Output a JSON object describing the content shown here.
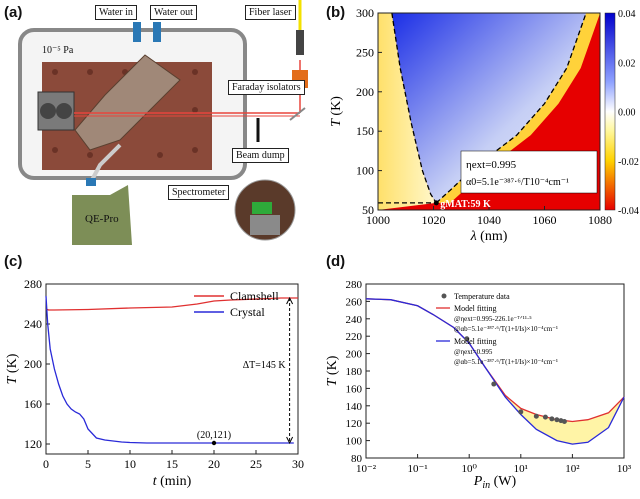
{
  "panel_a": {
    "label": "(a)",
    "water_in": "Water in",
    "water_out": "Water out",
    "fiber_laser": "Fiber laser",
    "pressure": "10⁻⁵ Pa",
    "faraday": "Faraday isolators",
    "beam_dump": "Beam dump",
    "qe_pro": "QE-Pro",
    "spectrometer": "Spectrometer"
  },
  "colors": {
    "laser_red": "#e8453c",
    "chamber_brown": "#8b4a3a",
    "qe_green": "#7d8e57",
    "clamshell": "#e03030",
    "crystal": "#2a2ad8",
    "fill_yellow": "#fff4a6"
  },
  "chart_data": [
    {
      "panel_label": "(b)",
      "type": "heatmap",
      "x_ticks": [
        "1000",
        "1020",
        "1040",
        "1060",
        "1080"
      ],
      "y_ticks": [
        "300",
        "250",
        "200",
        "150",
        "100",
        "50"
      ],
      "xlim": [
        1000,
        1080
      ],
      "ylim": [
        50,
        300
      ],
      "x_axis_symbol": "λ",
      "x_axis_unit": " (nm)",
      "y_axis_symbol": "T",
      "y_axis_unit": " (K)",
      "colorbar_ticks": [
        "0.04",
        "0.02",
        "0.00",
        "-0.02",
        "-0.04"
      ],
      "colorbar_range": [
        -0.04,
        0.04
      ],
      "zero_contour_left": [
        [
          1005,
          300
        ],
        [
          1008,
          230
        ],
        [
          1012,
          160
        ],
        [
          1016,
          100
        ],
        [
          1019,
          70
        ],
        [
          1021,
          59
        ]
      ],
      "zero_contour_right": [
        [
          1021,
          59
        ],
        [
          1026,
          75
        ],
        [
          1032,
          95
        ],
        [
          1040,
          118
        ],
        [
          1050,
          145
        ],
        [
          1060,
          185
        ],
        [
          1068,
          230
        ],
        [
          1075,
          300
        ]
      ],
      "gmat_line_T": 59,
      "eta_text": "ηext=0.995",
      "alpha_text": "α0=5.1e⁻³⁸⁷·⁶/T10⁻⁴cm⁻¹",
      "gmat_label": "gMAT:59 K"
    },
    {
      "panel_label": "(c)",
      "type": "line",
      "xlim": [
        0,
        30
      ],
      "ylim": [
        110,
        280
      ],
      "x_ticks": [
        0,
        5,
        10,
        15,
        20,
        25,
        30
      ],
      "y_ticks": [
        120,
        160,
        200,
        240,
        280
      ],
      "x_axis_symbol": "t",
      "x_axis_unit": " (min)",
      "y_axis_symbol": "T",
      "y_axis_unit": " (K)",
      "series": [
        {
          "name": "Clamshell",
          "color": "#e03030",
          "x": [
            0,
            0.3,
            1,
            5,
            10,
            15,
            18,
            20,
            22,
            25,
            28,
            30
          ],
          "y": [
            255,
            254,
            254,
            254.5,
            256,
            257,
            260,
            263,
            264,
            265,
            266,
            266
          ]
        },
        {
          "name": "Crystal",
          "color": "#2a2ad8",
          "x": [
            0,
            0.2,
            0.5,
            1,
            1.5,
            2,
            2.5,
            3,
            3.5,
            4,
            4.5,
            5,
            6,
            7,
            8,
            9,
            10,
            12,
            15,
            20,
            25,
            29.5
          ],
          "y": [
            268,
            240,
            215,
            195,
            180,
            168,
            160,
            155,
            152,
            150,
            145,
            135,
            126,
            124,
            123,
            122,
            121.5,
            121,
            121,
            121,
            121,
            121
          ]
        }
      ],
      "annotations": {
        "delta_label": "ΔT=145 K",
        "point_label": "(20,121)",
        "point": [
          20,
          121
        ],
        "delta_x": 29,
        "delta_top": 266,
        "delta_bottom": 121
      }
    },
    {
      "panel_label": "(d)",
      "type": "line",
      "x_scale": "log",
      "xlim": [
        0.01,
        1000
      ],
      "ylim": [
        80,
        280
      ],
      "x_ticks": [
        "10⁻²",
        "10⁻¹",
        "10⁰",
        "10¹",
        "10²",
        "10³"
      ],
      "y_ticks": [
        80,
        100,
        120,
        140,
        160,
        180,
        200,
        220,
        240,
        260,
        280
      ],
      "x_axis_symbol": "P",
      "x_axis_subscript": "in",
      "x_axis_unit": " (W)",
      "y_axis_symbol": "T",
      "y_axis_unit": " (K)",
      "scatter": {
        "name": "Temperature data",
        "x": [
          0.9,
          3,
          10,
          20,
          30,
          40,
          50,
          60,
          70
        ],
        "y": [
          217,
          165,
          133,
          128,
          127,
          125,
          124,
          123,
          122
        ]
      },
      "series": [
        {
          "name": "Model fitting",
          "color": "#e03030",
          "x": [
            0.01,
            0.03,
            0.1,
            0.2,
            0.5,
            1,
            2,
            5,
            10,
            20,
            50,
            100,
            200,
            500,
            1000
          ],
          "y": [
            263,
            262,
            255,
            245,
            230,
            212,
            185,
            152,
            137,
            130,
            124,
            122,
            124,
            132,
            150
          ]
        },
        {
          "name": "Model fitting",
          "color": "#2a2ad8",
          "x": [
            0.01,
            0.03,
            0.1,
            0.2,
            0.5,
            1,
            2,
            5,
            10,
            20,
            50,
            100,
            200,
            500,
            1000
          ],
          "y": [
            263,
            262,
            255,
            245,
            230,
            212,
            185,
            150,
            130,
            113,
            100,
            96,
            98,
            115,
            150
          ]
        }
      ],
      "legend_text": {
        "data": "Temperature data",
        "fit1_title": "Model fitting",
        "fit1_eta": "@ηext=0.995-226.1e⁻ᵀᐟ¹¹·⁵",
        "fit1_alpha": "@αb=5.1e⁻³⁸⁷·⁶/T(1+I/Is)×10⁻⁴cm⁻¹",
        "fit2_title": "Model fitting",
        "fit2_eta": "@ηext=0.995",
        "fit2_alpha": "@αb=5.1e⁻³⁸⁷·⁶/T(1+I/Is)×10⁻⁴cm⁻¹"
      }
    }
  ]
}
